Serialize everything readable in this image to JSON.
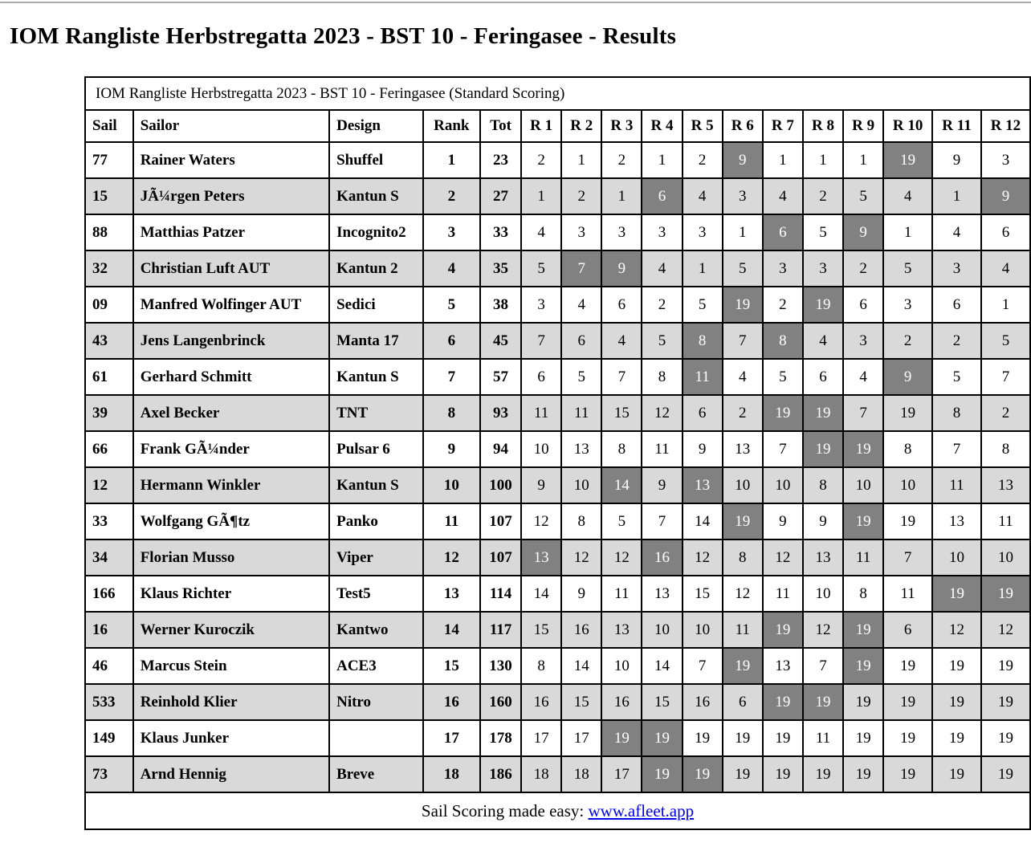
{
  "page": {
    "title": "IOM Rangliste Herbstregatta 2023 - BST 10 - Feringasee - Results"
  },
  "table": {
    "caption": "IOM Rangliste Herbstregatta 2023 - BST 10 - Feringasee (Standard Scoring)",
    "columns": [
      "Sail",
      "Sailor",
      "Design",
      "Rank",
      "Tot",
      "R 1",
      "R 2",
      "R 3",
      "R 4",
      "R 5",
      "R 6",
      "R 7",
      "R 8",
      "R 9",
      "R 10",
      "R 11",
      "R 12"
    ],
    "rows": [
      {
        "sail": "77",
        "sailor": "Rainer Waters",
        "design": "Shuffel",
        "rank": "1",
        "tot": "23",
        "races": [
          2,
          1,
          2,
          1,
          2,
          9,
          1,
          1,
          1,
          19,
          9,
          3
        ],
        "discards": [
          5,
          9
        ]
      },
      {
        "sail": "15",
        "sailor": "JÃ¼rgen Peters",
        "design": "Kantun S",
        "rank": "2",
        "tot": "27",
        "races": [
          1,
          2,
          1,
          6,
          4,
          3,
          4,
          2,
          5,
          4,
          1,
          9
        ],
        "discards": [
          3,
          11
        ]
      },
      {
        "sail": "88",
        "sailor": "Matthias Patzer",
        "design": "Incognito2",
        "rank": "3",
        "tot": "33",
        "races": [
          4,
          3,
          3,
          3,
          3,
          1,
          6,
          5,
          9,
          1,
          4,
          6
        ],
        "discards": [
          6,
          8
        ]
      },
      {
        "sail": "32",
        "sailor": "Christian Luft AUT",
        "design": "Kantun 2",
        "rank": "4",
        "tot": "35",
        "races": [
          5,
          7,
          9,
          4,
          1,
          5,
          3,
          3,
          2,
          5,
          3,
          4
        ],
        "discards": [
          1,
          2
        ]
      },
      {
        "sail": "09",
        "sailor": "Manfred Wolfinger AUT",
        "design": "Sedici",
        "rank": "5",
        "tot": "38",
        "races": [
          3,
          4,
          6,
          2,
          5,
          19,
          2,
          19,
          6,
          3,
          6,
          1
        ],
        "discards": [
          5,
          7
        ]
      },
      {
        "sail": "43",
        "sailor": "Jens Langenbrinck",
        "design": "Manta 17",
        "rank": "6",
        "tot": "45",
        "races": [
          7,
          6,
          4,
          5,
          8,
          7,
          8,
          4,
          3,
          2,
          2,
          5
        ],
        "discards": [
          4,
          6
        ]
      },
      {
        "sail": "61",
        "sailor": "Gerhard Schmitt",
        "design": "Kantun S",
        "rank": "7",
        "tot": "57",
        "races": [
          6,
          5,
          7,
          8,
          11,
          4,
          5,
          6,
          4,
          9,
          5,
          7
        ],
        "discards": [
          4,
          9
        ]
      },
      {
        "sail": "39",
        "sailor": "Axel Becker",
        "design": "TNT",
        "rank": "8",
        "tot": "93",
        "races": [
          11,
          11,
          15,
          12,
          6,
          2,
          19,
          19,
          7,
          19,
          8,
          2
        ],
        "discards": [
          6,
          7
        ]
      },
      {
        "sail": "66",
        "sailor": "Frank GÃ¼nder",
        "design": "Pulsar 6",
        "rank": "9",
        "tot": "94",
        "races": [
          10,
          13,
          8,
          11,
          9,
          13,
          7,
          19,
          19,
          8,
          7,
          8
        ],
        "discards": [
          7,
          8
        ]
      },
      {
        "sail": "12",
        "sailor": "Hermann Winkler",
        "design": "Kantun S",
        "rank": "10",
        "tot": "100",
        "races": [
          9,
          10,
          14,
          9,
          13,
          10,
          10,
          8,
          10,
          10,
          11,
          13
        ],
        "discards": [
          2,
          4
        ]
      },
      {
        "sail": "33",
        "sailor": "Wolfgang GÃ¶tz",
        "design": "Panko",
        "rank": "11",
        "tot": "107",
        "races": [
          12,
          8,
          5,
          7,
          14,
          19,
          9,
          9,
          19,
          19,
          13,
          11
        ],
        "discards": [
          5,
          8
        ]
      },
      {
        "sail": "34",
        "sailor": "Florian Musso",
        "design": "Viper",
        "rank": "12",
        "tot": "107",
        "races": [
          13,
          12,
          12,
          16,
          12,
          8,
          12,
          13,
          11,
          7,
          10,
          10
        ],
        "discards": [
          0,
          3
        ]
      },
      {
        "sail": "166",
        "sailor": "Klaus Richter",
        "design": "Test5",
        "rank": "13",
        "tot": "114",
        "races": [
          14,
          9,
          11,
          13,
          15,
          12,
          11,
          10,
          8,
          11,
          19,
          19
        ],
        "discards": [
          10,
          11
        ]
      },
      {
        "sail": "16",
        "sailor": "Werner Kuroczik",
        "design": "Kantwo",
        "rank": "14",
        "tot": "117",
        "races": [
          15,
          16,
          13,
          10,
          10,
          11,
          19,
          12,
          19,
          6,
          12,
          12
        ],
        "discards": [
          6,
          8
        ]
      },
      {
        "sail": "46",
        "sailor": "Marcus Stein",
        "design": "ACE3",
        "rank": "15",
        "tot": "130",
        "races": [
          8,
          14,
          10,
          14,
          7,
          19,
          13,
          7,
          19,
          19,
          19,
          19
        ],
        "discards": [
          5,
          8
        ]
      },
      {
        "sail": "533",
        "sailor": "Reinhold Klier",
        "design": "Nitro",
        "rank": "16",
        "tot": "160",
        "races": [
          16,
          15,
          16,
          15,
          16,
          6,
          19,
          19,
          19,
          19,
          19,
          19
        ],
        "discards": [
          6,
          7
        ]
      },
      {
        "sail": "149",
        "sailor": "Klaus Junker",
        "design": "",
        "rank": "17",
        "tot": "178",
        "races": [
          17,
          17,
          19,
          19,
          19,
          19,
          19,
          11,
          19,
          19,
          19,
          19
        ],
        "discards": [
          2,
          3
        ]
      },
      {
        "sail": "73",
        "sailor": "Arnd Hennig",
        "design": "Breve",
        "rank": "18",
        "tot": "186",
        "races": [
          18,
          18,
          17,
          19,
          19,
          19,
          19,
          19,
          19,
          19,
          19,
          19
        ],
        "discards": [
          3,
          4
        ]
      }
    ],
    "footer": {
      "text": "Sail Scoring made easy: ",
      "link": "www.afleet.app"
    }
  },
  "colors": {
    "discard_bg": "#818181",
    "discard_text": "#ffffff",
    "row_alt": "#d9d9d9",
    "link": "#0000ee",
    "top_line": "#a9a9a9"
  }
}
